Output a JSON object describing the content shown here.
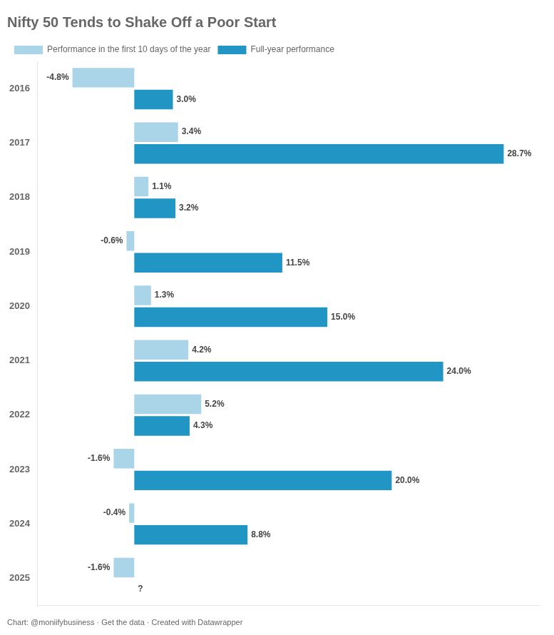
{
  "chart_data": {
    "type": "bar",
    "orientation": "horizontal",
    "title": "Nifty 50 Tends to Shake Off a Poor Start",
    "categories": [
      "2016",
      "2017",
      "2018",
      "2019",
      "2020",
      "2021",
      "2022",
      "2023",
      "2024",
      "2025"
    ],
    "series": [
      {
        "name": "Performance in the first 10 days of the year",
        "color": "#aad4e8",
        "values": [
          -4.8,
          3.4,
          1.1,
          -0.6,
          1.3,
          4.2,
          5.2,
          -1.6,
          -0.4,
          -1.6
        ],
        "value_labels": [
          "-4.8%",
          "3.4%",
          "1.1%",
          "-0.6%",
          "1.3%",
          "4.2%",
          "5.2%",
          "-1.6%",
          "-0.4%",
          "-1.6%"
        ]
      },
      {
        "name": "Full-year performance",
        "color": "#2196c4",
        "values": [
          3.0,
          28.7,
          3.2,
          11.5,
          15.0,
          24.0,
          4.3,
          20.0,
          8.8,
          null
        ],
        "value_labels": [
          "3.0%",
          "28.7%",
          "3.2%",
          "11.5%",
          "15.0%",
          "24.0%",
          "4.3%",
          "20.0%",
          "8.8%",
          "?"
        ]
      }
    ],
    "xlim": [
      -7.5,
      31.5
    ],
    "data_labels": true,
    "tick_labels": "y",
    "grid": false,
    "legend": "top",
    "annotations": [
      "Chart: @moniifybusiness · Get the data · Created with Datawrapper"
    ]
  }
}
